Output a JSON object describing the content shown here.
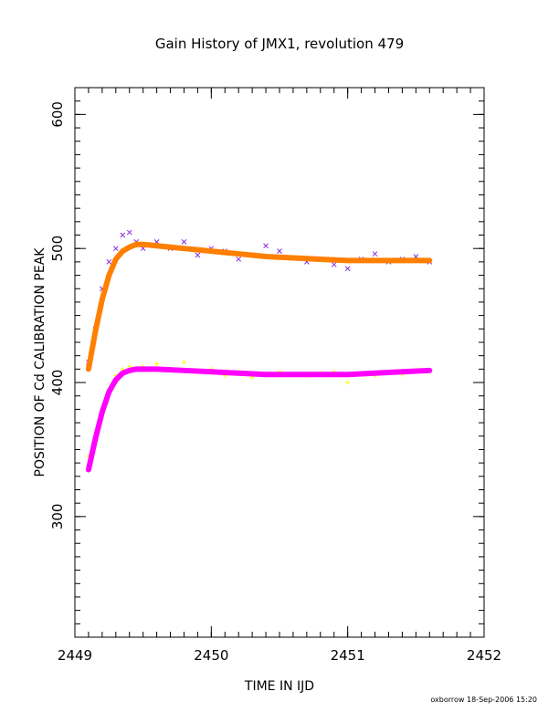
{
  "chart_data": {
    "type": "scatter",
    "title": "Gain History of JMX1, revolution 479",
    "xlabel": "TIME IN IJD",
    "ylabel": "POSITION OF Cd CALIBRATION PEAK",
    "xlim": [
      2449,
      2452
    ],
    "ylim": [
      210,
      620
    ],
    "xticks": [
      2449,
      2450,
      2451,
      2452
    ],
    "xtick_labels": [
      "2449",
      "2450",
      "2451",
      "2452"
    ],
    "yticks": [
      300,
      400,
      500,
      600
    ],
    "ytick_labels": [
      "300",
      "400",
      "500",
      "600"
    ],
    "grid": false,
    "legend": "none",
    "series": [
      {
        "marker": "x",
        "color": "#8a2be2",
        "x": [
          2449.1,
          2449.15,
          2449.2,
          2449.25,
          2449.3,
          2449.35,
          2449.4,
          2449.45,
          2449.5,
          2449.6,
          2449.7,
          2449.8,
          2449.9,
          2450.0,
          2450.1,
          2450.2,
          2450.3,
          2450.4,
          2450.5,
          2450.6,
          2450.7,
          2450.8,
          2450.9,
          2451.0,
          2451.1,
          2451.2,
          2451.3,
          2451.4,
          2451.5,
          2451.6
        ],
        "y": [
          415,
          440,
          470,
          490,
          500,
          510,
          512,
          505,
          500,
          505,
          500,
          505,
          495,
          500,
          498,
          492,
          495,
          502,
          498,
          493,
          490,
          492,
          488,
          485,
          492,
          496,
          490,
          492,
          494,
          490
        ]
      },
      {
        "marker": "line-fit",
        "color": "#ff7f00",
        "x": [
          2449.1,
          2449.15,
          2449.2,
          2449.25,
          2449.3,
          2449.35,
          2449.4,
          2449.45,
          2449.5,
          2449.6,
          2449.7,
          2449.8,
          2449.9,
          2450.0,
          2450.2,
          2450.4,
          2450.6,
          2450.8,
          2451.0,
          2451.2,
          2451.4,
          2451.6
        ],
        "y": [
          410,
          438,
          462,
          480,
          492,
          498,
          501,
          503,
          503,
          502,
          501,
          500,
          499,
          498,
          496,
          494,
          493,
          492,
          491,
          491,
          491,
          491
        ]
      },
      {
        "marker": "+",
        "color": "#ffff00",
        "x": [
          2449.1,
          2449.15,
          2449.2,
          2449.25,
          2449.3,
          2449.35,
          2449.4,
          2449.5,
          2449.6,
          2449.7,
          2449.8,
          2449.9,
          2450.0,
          2450.1,
          2450.2,
          2450.3,
          2450.4,
          2450.5,
          2450.6,
          2450.7,
          2450.8,
          2450.9,
          2451.0,
          2451.1,
          2451.2,
          2451.3,
          2451.4,
          2451.5,
          2451.6
        ],
        "y": [
          345,
          360,
          380,
          395,
          405,
          410,
          412,
          412,
          414,
          410,
          415,
          408,
          410,
          405,
          408,
          404,
          406,
          408,
          406,
          405,
          407,
          408,
          400,
          406,
          405,
          408,
          406,
          410,
          409
        ]
      },
      {
        "marker": "line-fit",
        "color": "#ff00ff",
        "x": [
          2449.1,
          2449.15,
          2449.2,
          2449.25,
          2449.3,
          2449.35,
          2449.4,
          2449.45,
          2449.5,
          2449.6,
          2449.8,
          2450.0,
          2450.2,
          2450.4,
          2450.6,
          2450.8,
          2451.0,
          2451.2,
          2451.4,
          2451.6
        ],
        "y": [
          335,
          358,
          378,
          393,
          402,
          407,
          409,
          410,
          410,
          410,
          409,
          408,
          407,
          406,
          406,
          406,
          406,
          407,
          408,
          409
        ]
      }
    ]
  },
  "footer": "oxborrow 18-Sep-2006 15:20"
}
